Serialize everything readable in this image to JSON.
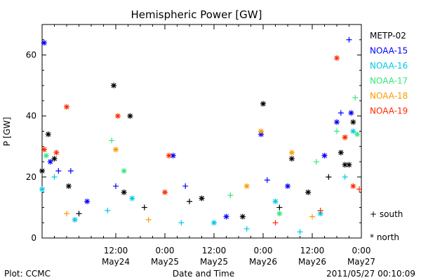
{
  "chart_data": {
    "type": "scatter",
    "title": "Hemispheric Power [GW]",
    "xlabel": "Date and Time",
    "ylabel": "P [GW]",
    "ylim": [
      0,
      70
    ],
    "xlim": [
      "2011-05-23 18:00",
      "2011-05-27 00:00"
    ],
    "yticks": [
      0,
      20,
      40,
      60
    ],
    "xticks": [
      {
        "time": "2011-05-24 12:00",
        "line1": "12:00",
        "line2": "May24"
      },
      {
        "time": "2011-05-25 00:00",
        "line1": "0:00",
        "line2": "May25"
      },
      {
        "time": "2011-05-25 12:00",
        "line1": "12:00",
        "line2": "May25"
      },
      {
        "time": "2011-05-26 00:00",
        "line1": "0:00",
        "line2": "May26"
      },
      {
        "time": "2011-05-26 12:00",
        "line1": "12:00",
        "line2": "May26"
      },
      {
        "time": "2011-05-27 00:00",
        "line1": "0:00",
        "line2": "May27"
      }
    ],
    "legend_position": "right",
    "marker_legend": {
      "south": "+ south",
      "north": "* north"
    },
    "footer_left": "Plot: CCMC",
    "footer_right": "2011/05/27 00:10:09",
    "series": [
      {
        "name": "METP-02",
        "color": "#000000",
        "points": [
          {
            "x": "2011-05-23 18:00",
            "y": 22,
            "m": "north"
          },
          {
            "x": "2011-05-23 19:30",
            "y": 34,
            "m": "north"
          },
          {
            "x": "2011-05-23 21:00",
            "y": 26,
            "m": "north"
          },
          {
            "x": "2011-05-24 00:30",
            "y": 17,
            "m": "north"
          },
          {
            "x": "2011-05-24 03:00",
            "y": 8,
            "m": "south"
          },
          {
            "x": "2011-05-24 11:30",
            "y": 50,
            "m": "north"
          },
          {
            "x": "2011-05-24 14:00",
            "y": 15,
            "m": "north"
          },
          {
            "x": "2011-05-24 15:30",
            "y": 40,
            "m": "north"
          },
          {
            "x": "2011-05-24 19:00",
            "y": 10,
            "m": "south"
          },
          {
            "x": "2011-05-25 06:00",
            "y": 12,
            "m": "south"
          },
          {
            "x": "2011-05-25 09:00",
            "y": 13,
            "m": "north"
          },
          {
            "x": "2011-05-25 19:00",
            "y": 7,
            "m": "north"
          },
          {
            "x": "2011-05-26 00:00",
            "y": 44,
            "m": "north"
          },
          {
            "x": "2011-05-26 04:00",
            "y": 10,
            "m": "south"
          },
          {
            "x": "2011-05-26 07:00",
            "y": 26,
            "m": "north"
          },
          {
            "x": "2011-05-26 11:00",
            "y": 15,
            "m": "north"
          },
          {
            "x": "2011-05-26 16:00",
            "y": 20,
            "m": "south"
          },
          {
            "x": "2011-05-26 19:00",
            "y": 28,
            "m": "north"
          },
          {
            "x": "2011-05-26 20:00",
            "y": 24,
            "m": "north"
          },
          {
            "x": "2011-05-26 21:00",
            "y": 24,
            "m": "north"
          },
          {
            "x": "2011-05-26 22:00",
            "y": 38,
            "m": "north"
          }
        ]
      },
      {
        "name": "NOAA-15",
        "color": "#0000ff",
        "points": [
          {
            "x": "2011-05-23 18:30",
            "y": 64,
            "m": "north"
          },
          {
            "x": "2011-05-23 20:00",
            "y": 25,
            "m": "north"
          },
          {
            "x": "2011-05-23 22:00",
            "y": 22,
            "m": "south"
          },
          {
            "x": "2011-05-24 01:00",
            "y": 22,
            "m": "south"
          },
          {
            "x": "2011-05-24 05:00",
            "y": 12,
            "m": "north"
          },
          {
            "x": "2011-05-24 12:00",
            "y": 17,
            "m": "south"
          },
          {
            "x": "2011-05-25 02:00",
            "y": 27,
            "m": "north"
          },
          {
            "x": "2011-05-25 05:00",
            "y": 17,
            "m": "south"
          },
          {
            "x": "2011-05-25 15:00",
            "y": 7,
            "m": "north"
          },
          {
            "x": "2011-05-25 23:30",
            "y": 34,
            "m": "north"
          },
          {
            "x": "2011-05-26 01:00",
            "y": 19,
            "m": "south"
          },
          {
            "x": "2011-05-26 06:00",
            "y": 17,
            "m": "north"
          },
          {
            "x": "2011-05-26 15:00",
            "y": 27,
            "m": "north"
          },
          {
            "x": "2011-05-26 18:00",
            "y": 38,
            "m": "north"
          },
          {
            "x": "2011-05-26 19:00",
            "y": 41,
            "m": "south"
          },
          {
            "x": "2011-05-26 21:00",
            "y": 65,
            "m": "south"
          },
          {
            "x": "2011-05-26 21:30",
            "y": 41,
            "m": "north"
          }
        ]
      },
      {
        "name": "NOAA-16",
        "color": "#00c8e6",
        "points": [
          {
            "x": "2011-05-23 18:00",
            "y": 16,
            "m": "north"
          },
          {
            "x": "2011-05-23 21:00",
            "y": 20,
            "m": "south"
          },
          {
            "x": "2011-05-24 02:00",
            "y": 6,
            "m": "north"
          },
          {
            "x": "2011-05-24 10:00",
            "y": 9,
            "m": "south"
          },
          {
            "x": "2011-05-24 16:00",
            "y": 13,
            "m": "north"
          },
          {
            "x": "2011-05-25 04:00",
            "y": 5,
            "m": "south"
          },
          {
            "x": "2011-05-25 12:00",
            "y": 5,
            "m": "north"
          },
          {
            "x": "2011-05-25 20:00",
            "y": 3,
            "m": "south"
          },
          {
            "x": "2011-05-26 03:00",
            "y": 12,
            "m": "north"
          },
          {
            "x": "2011-05-26 09:00",
            "y": 2,
            "m": "south"
          },
          {
            "x": "2011-05-26 14:00",
            "y": 8,
            "m": "north"
          },
          {
            "x": "2011-05-26 20:00",
            "y": 20,
            "m": "south"
          },
          {
            "x": "2011-05-26 22:00",
            "y": 35,
            "m": "north"
          }
        ]
      },
      {
        "name": "NOAA-17",
        "color": "#33e87a",
        "points": [
          {
            "x": "2011-05-23 19:00",
            "y": 27,
            "m": "north"
          },
          {
            "x": "2011-05-24 11:00",
            "y": 32,
            "m": "south"
          },
          {
            "x": "2011-05-24 14:00",
            "y": 22,
            "m": "north"
          },
          {
            "x": "2011-05-25 16:00",
            "y": 14,
            "m": "south"
          },
          {
            "x": "2011-05-26 04:00",
            "y": 8,
            "m": "north"
          },
          {
            "x": "2011-05-26 13:00",
            "y": 25,
            "m": "south"
          },
          {
            "x": "2011-05-26 18:00",
            "y": 35,
            "m": "south"
          },
          {
            "x": "2011-05-26 22:30",
            "y": 46,
            "m": "south"
          },
          {
            "x": "2011-05-26 23:00",
            "y": 34,
            "m": "north"
          }
        ]
      },
      {
        "name": "NOAA-18",
        "color": "#ff9900",
        "points": [
          {
            "x": "2011-05-24 00:00",
            "y": 8,
            "m": "south"
          },
          {
            "x": "2011-05-24 12:00",
            "y": 29,
            "m": "north"
          },
          {
            "x": "2011-05-24 20:00",
            "y": 6,
            "m": "south"
          },
          {
            "x": "2011-05-25 20:00",
            "y": 17,
            "m": "north"
          },
          {
            "x": "2011-05-25 23:30",
            "y": 35,
            "m": "north"
          },
          {
            "x": "2011-05-26 07:00",
            "y": 28,
            "m": "north"
          },
          {
            "x": "2011-05-26 12:00",
            "y": 7,
            "m": "south"
          },
          {
            "x": "2011-05-26 20:00",
            "y": 33,
            "m": "north"
          }
        ]
      },
      {
        "name": "NOAA-19",
        "color": "#ff2a00",
        "points": [
          {
            "x": "2011-05-23 18:30",
            "y": 29,
            "m": "north"
          },
          {
            "x": "2011-05-23 21:30",
            "y": 28,
            "m": "north"
          },
          {
            "x": "2011-05-24 00:00",
            "y": 43,
            "m": "north"
          },
          {
            "x": "2011-05-24 12:30",
            "y": 40,
            "m": "north"
          },
          {
            "x": "2011-05-25 00:00",
            "y": 15,
            "m": "north"
          },
          {
            "x": "2011-05-25 01:00",
            "y": 27,
            "m": "north"
          },
          {
            "x": "2011-05-26 03:00",
            "y": 5,
            "m": "south"
          },
          {
            "x": "2011-05-26 14:00",
            "y": 9,
            "m": "south"
          },
          {
            "x": "2011-05-26 18:00",
            "y": 59,
            "m": "north"
          },
          {
            "x": "2011-05-26 20:00",
            "y": 33,
            "m": "north"
          },
          {
            "x": "2011-05-26 22:00",
            "y": 17,
            "m": "north"
          },
          {
            "x": "2011-05-26 23:30",
            "y": 16,
            "m": "south"
          }
        ]
      }
    ]
  }
}
